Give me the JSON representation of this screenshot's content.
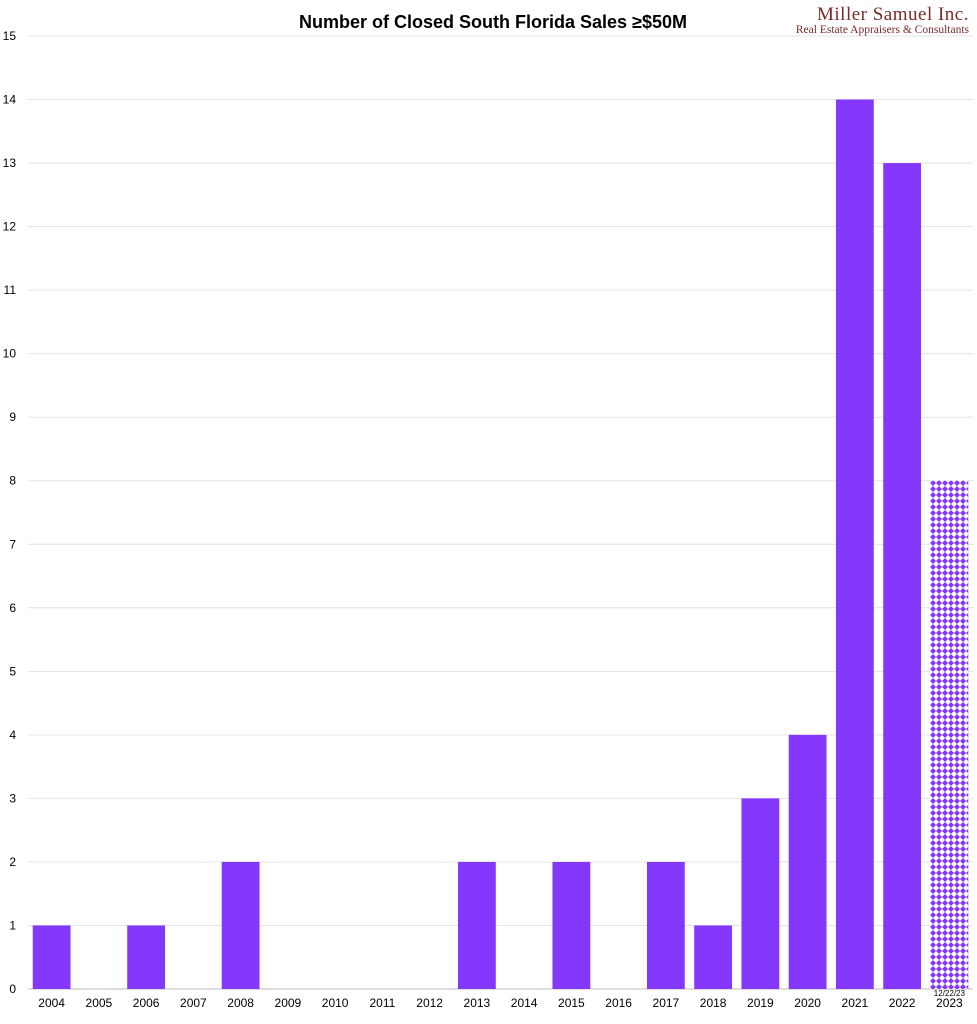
{
  "logo": {
    "name": "Miller Samuel Inc.",
    "tagline": "Real Estate Appraisers & Consultants"
  },
  "chart_data": {
    "type": "bar",
    "title": "Number of Closed South Florida Sales ≥$50M",
    "xlabel": "",
    "ylabel": "",
    "categories": [
      "2004",
      "2005",
      "2006",
      "2007",
      "2008",
      "2009",
      "2010",
      "2011",
      "2012",
      "2013",
      "2014",
      "2015",
      "2016",
      "2017",
      "2018",
      "2019",
      "2020",
      "2021",
      "2022",
      "2023"
    ],
    "values": [
      1,
      0,
      1,
      0,
      2,
      0,
      0,
      0,
      0,
      2,
      0,
      2,
      0,
      2,
      1,
      3,
      4,
      14,
      13,
      8
    ],
    "ylim": [
      0,
      15
    ],
    "yticks": [
      0,
      1,
      2,
      3,
      4,
      5,
      6,
      7,
      8,
      9,
      10,
      11,
      12,
      13,
      14,
      15
    ],
    "grid": true,
    "legend": "none",
    "bar_color": "#8338fb",
    "partial_year": {
      "category": "2023",
      "pattern": "diamond",
      "note": "12/22/23"
    }
  }
}
